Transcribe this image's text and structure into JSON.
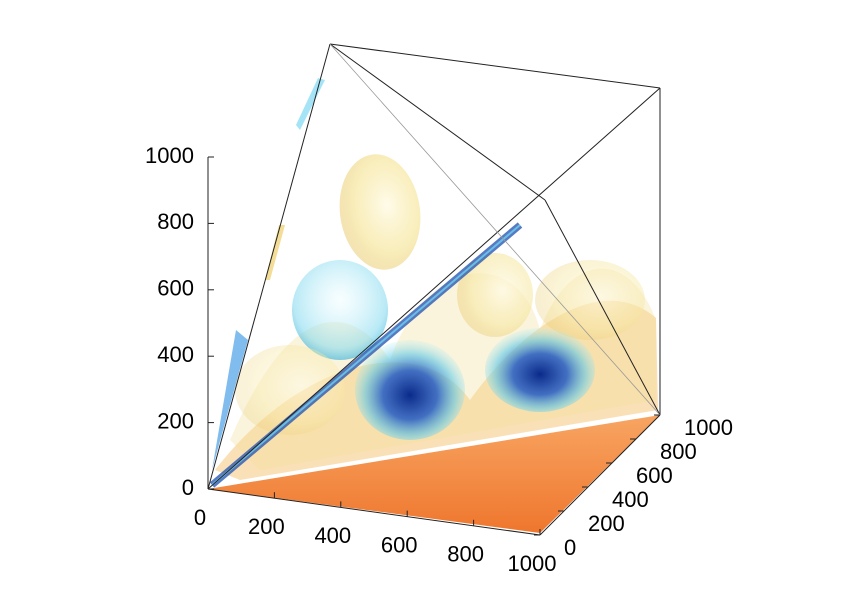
{
  "chart_data": {
    "type": "isosurface",
    "xlim": [
      0,
      1000
    ],
    "xticks": [
      0,
      200,
      400,
      600,
      800,
      1000
    ],
    "ylim": [
      0,
      1000
    ],
    "yticks": [
      0,
      200,
      400,
      600,
      800,
      1000
    ],
    "zlim": [
      0,
      1000
    ],
    "zticks": [
      0,
      200,
      400,
      600,
      800,
      1000
    ]
  }
}
